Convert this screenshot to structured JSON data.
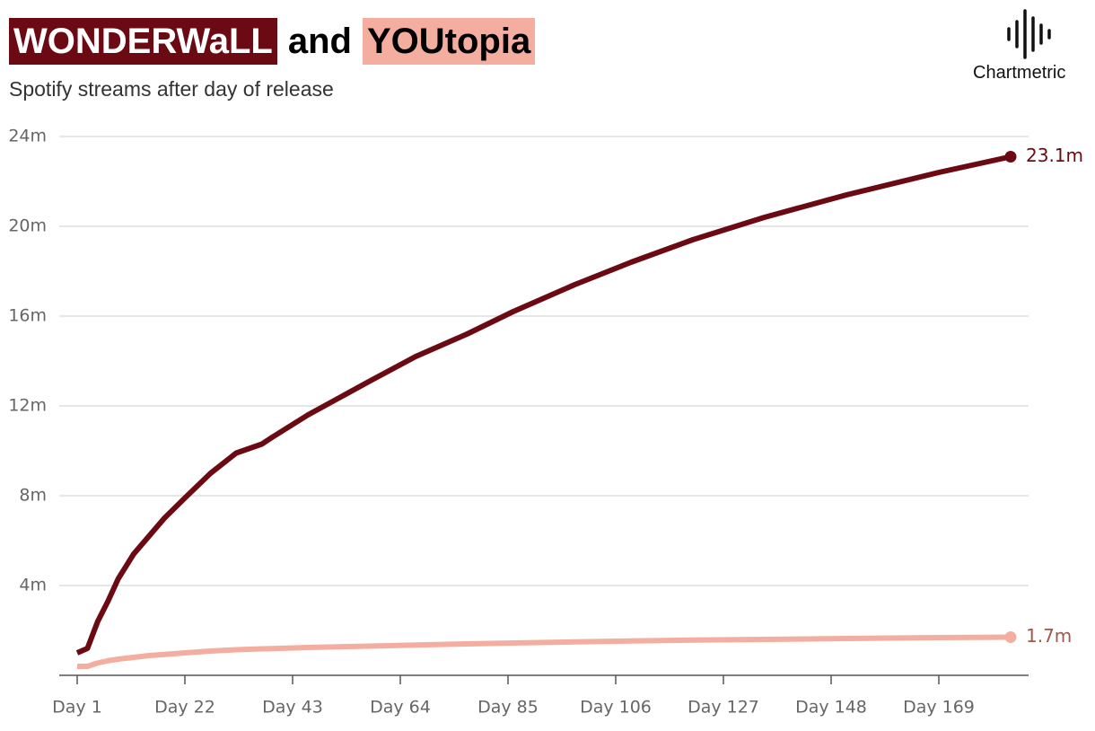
{
  "chart_data": {
    "type": "line",
    "title_joiner": "and",
    "subtitle": "Spotify streams after day of release",
    "brand": "Chartmetric",
    "x": [
      1,
      3,
      5,
      7,
      9,
      12,
      15,
      18,
      22,
      27,
      32,
      37,
      39,
      46,
      58,
      67,
      77,
      86,
      98,
      109,
      121,
      135,
      151,
      169,
      183
    ],
    "series": [
      {
        "name": "WONDERWaLL",
        "color": "#6b0a12",
        "label_color": "#6b0a12",
        "values": [
          1.0,
          1.2,
          2.4,
          3.3,
          4.3,
          5.4,
          6.2,
          7.0,
          7.9,
          9.0,
          9.9,
          10.3,
          10.6,
          11.6,
          13.1,
          14.2,
          15.2,
          16.2,
          17.4,
          18.4,
          19.4,
          20.4,
          21.4,
          22.4,
          23.1
        ],
        "value_labels": [
          null,
          null,
          null,
          null,
          null,
          null,
          null,
          null,
          null,
          null,
          null,
          null,
          null,
          null,
          null,
          null,
          null,
          null,
          null,
          null,
          null,
          null,
          null,
          null,
          "23.1m"
        ]
      },
      {
        "name": "YOUtopia",
        "color": "#f4aea0",
        "label_color": "#a0574c",
        "values": [
          0.4,
          0.4,
          0.55,
          0.65,
          0.72,
          0.8,
          0.88,
          0.93,
          1.0,
          1.08,
          1.14,
          1.18,
          1.19,
          1.24,
          1.3,
          1.35,
          1.4,
          1.44,
          1.49,
          1.53,
          1.57,
          1.6,
          1.64,
          1.68,
          1.7
        ],
        "value_labels": [
          null,
          null,
          null,
          null,
          null,
          null,
          null,
          null,
          null,
          null,
          null,
          null,
          null,
          null,
          null,
          null,
          null,
          null,
          null,
          null,
          null,
          null,
          null,
          null,
          "1.7m"
        ]
      }
    ],
    "xlim": [
      -2.5,
      186.5
    ],
    "xticks": [
      {
        "value": 1,
        "label": "Day 1"
      },
      {
        "value": 22,
        "label": "Day 22"
      },
      {
        "value": 43,
        "label": "Day 43"
      },
      {
        "value": 64,
        "label": "Day 64"
      },
      {
        "value": 85,
        "label": "Day 85"
      },
      {
        "value": 106,
        "label": "Day 106"
      },
      {
        "value": 127,
        "label": "Day 127"
      },
      {
        "value": 148,
        "label": "Day 148"
      },
      {
        "value": 169,
        "label": "Day 169"
      }
    ],
    "ylim": [
      0,
      24
    ],
    "yticks": [
      {
        "value": 4,
        "label": "4m"
      },
      {
        "value": 8,
        "label": "8m"
      },
      {
        "value": 12,
        "label": "12m"
      },
      {
        "value": 16,
        "label": "16m"
      },
      {
        "value": 20,
        "label": "20m"
      },
      {
        "value": 24,
        "label": "24m"
      }
    ],
    "grid": true
  }
}
